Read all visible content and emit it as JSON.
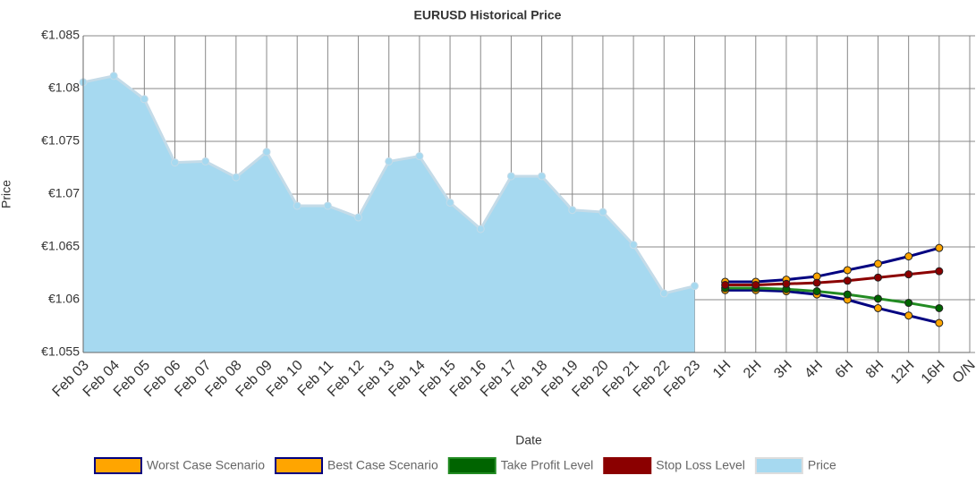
{
  "chart_data": {
    "type": "line",
    "title": "EURUSD  Historical Price",
    "x_label": "Date",
    "y_label": "Price",
    "categories": [
      "Feb 03",
      "Feb 04",
      "Feb 05",
      "Feb 06",
      "Feb 07",
      "Feb 08",
      "Feb 09",
      "Feb 10",
      "Feb 11",
      "Feb 12",
      "Feb 13",
      "Feb 14",
      "Feb 15",
      "Feb 16",
      "Feb 17",
      "Feb 18",
      "Feb 19",
      "Feb 20",
      "Feb 21",
      "Feb 22",
      "Feb 23",
      "1H",
      "2H",
      "3H",
      "4H",
      "6H",
      "8H",
      "12H",
      "16H",
      "O/N"
    ],
    "ylim": [
      1.055,
      1.085
    ],
    "yticks": [
      {
        "value": 1.055,
        "label": "€1.055"
      },
      {
        "value": 1.06,
        "label": "€1.06"
      },
      {
        "value": 1.065,
        "label": "€1.065"
      },
      {
        "value": 1.07,
        "label": "€1.07"
      },
      {
        "value": 1.075,
        "label": "€1.075"
      },
      {
        "value": 1.08,
        "label": "€1.08"
      },
      {
        "value": 1.085,
        "label": "€1.085"
      }
    ],
    "grid": true,
    "legend": "bottom",
    "series": [
      {
        "name": "Worst Case Scenario",
        "color": "#ffa500",
        "line_color": "#000080",
        "values": [
          null,
          null,
          null,
          null,
          null,
          null,
          null,
          null,
          null,
          null,
          null,
          null,
          null,
          null,
          null,
          null,
          null,
          null,
          null,
          null,
          null,
          1.0609,
          1.0609,
          1.0608,
          1.0605,
          1.06,
          1.0592,
          1.0585,
          1.0578,
          null
        ]
      },
      {
        "name": "Best Case Scenario",
        "color": "#ffa500",
        "line_color": "#000080",
        "values": [
          null,
          null,
          null,
          null,
          null,
          null,
          null,
          null,
          null,
          null,
          null,
          null,
          null,
          null,
          null,
          null,
          null,
          null,
          null,
          null,
          null,
          1.0617,
          1.0617,
          1.0619,
          1.0622,
          1.0628,
          1.0634,
          1.0641,
          1.0649,
          null
        ]
      },
      {
        "name": "Take Profit Level",
        "color": "#006400",
        "line_color": "#228b22",
        "values": [
          null,
          null,
          null,
          null,
          null,
          null,
          null,
          null,
          null,
          null,
          null,
          null,
          null,
          null,
          null,
          null,
          null,
          null,
          null,
          null,
          null,
          1.0611,
          1.0611,
          1.061,
          1.0608,
          1.0605,
          1.0601,
          1.0597,
          1.0592,
          null
        ]
      },
      {
        "name": "Stop Loss Level",
        "color": "#8b0000",
        "line_color": "#8b0000",
        "values": [
          null,
          null,
          null,
          null,
          null,
          null,
          null,
          null,
          null,
          null,
          null,
          null,
          null,
          null,
          null,
          null,
          null,
          null,
          null,
          null,
          null,
          1.0614,
          1.0614,
          1.0615,
          1.0616,
          1.0618,
          1.0621,
          1.0624,
          1.0627,
          null
        ]
      },
      {
        "name": "Price",
        "color": "#a6d9f0",
        "line_color": "#c4dbe8",
        "area": true,
        "values": [
          1.0806,
          1.0812,
          1.079,
          1.073,
          1.0731,
          1.0716,
          1.074,
          1.0689,
          1.0689,
          1.0678,
          1.0731,
          1.0736,
          1.0692,
          1.0667,
          1.0717,
          1.0717,
          1.0685,
          1.0683,
          1.0652,
          1.0606,
          1.0613,
          null,
          null,
          null,
          null,
          null,
          null,
          null,
          null,
          null
        ]
      }
    ]
  }
}
